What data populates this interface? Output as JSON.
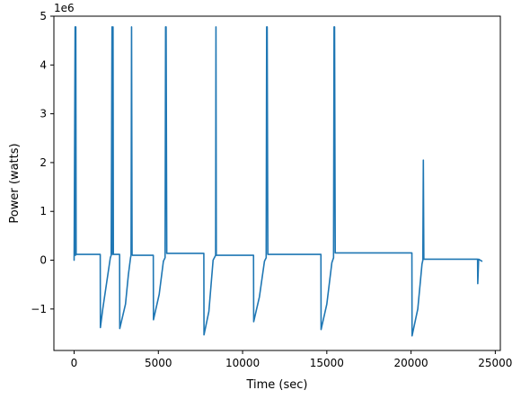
{
  "chart_data": {
    "type": "line",
    "title": "",
    "xlabel": "Time (sec)",
    "ylabel": "Power (watts)",
    "y_offset_label": "1e6",
    "xlim": [
      -1200,
      25300
    ],
    "ylim": [
      -1.85,
      5.0
    ],
    "x_ticks": [
      0,
      5000,
      10000,
      15000,
      20000,
      25000
    ],
    "y_ticks": [
      -1,
      0,
      1,
      2,
      3,
      4,
      5
    ],
    "grid": false,
    "legend": "none",
    "series": [
      {
        "color": "#1f77b4",
        "x": [
          0,
          60,
          80,
          100,
          120,
          140,
          160,
          1550,
          1560,
          1700,
          2000,
          2150,
          2200,
          2250,
          2280,
          2310,
          2330,
          2700,
          2710,
          3050,
          3220,
          3350,
          3380,
          3410,
          3440,
          3470,
          4700,
          4710,
          5050,
          5300,
          5400,
          5430,
          5460,
          5500,
          5530,
          7700,
          7710,
          8000,
          8250,
          8400,
          8420,
          8440,
          8460,
          10650,
          10660,
          11000,
          11300,
          11400,
          11430,
          11460,
          11500,
          14650,
          14660,
          15000,
          15300,
          15400,
          15430,
          15460,
          15500,
          20050,
          20060,
          20400,
          20650,
          20700,
          20730,
          20760,
          20800,
          23950,
          23960,
          23980,
          24010,
          24200
        ],
        "values": [
          0,
          4.78,
          0.1,
          4.78,
          0.12,
          0.12,
          0.12,
          0.12,
          -1.38,
          -1.0,
          -0.3,
          0.05,
          0.1,
          4.78,
          0.12,
          4.78,
          0.12,
          0.12,
          -1.4,
          -0.9,
          -0.3,
          0.05,
          0.1,
          4.78,
          0.12,
          0.1,
          0.1,
          -1.22,
          -0.7,
          -0.02,
          0.05,
          4.78,
          4.78,
          0.14,
          0.14,
          0.14,
          -1.53,
          -1.05,
          0.0,
          0.1,
          4.78,
          0.1,
          0.1,
          0.1,
          -1.26,
          -0.75,
          -0.02,
          0.05,
          4.78,
          4.78,
          0.12,
          0.12,
          -1.42,
          -0.9,
          -0.05,
          0.05,
          4.78,
          4.78,
          0.15,
          0.15,
          -1.55,
          -1.0,
          -0.08,
          0.0,
          2.05,
          0.02,
          0.02,
          0.02,
          -0.48,
          -0.3,
          0.02,
          -0.02
        ]
      }
    ]
  }
}
